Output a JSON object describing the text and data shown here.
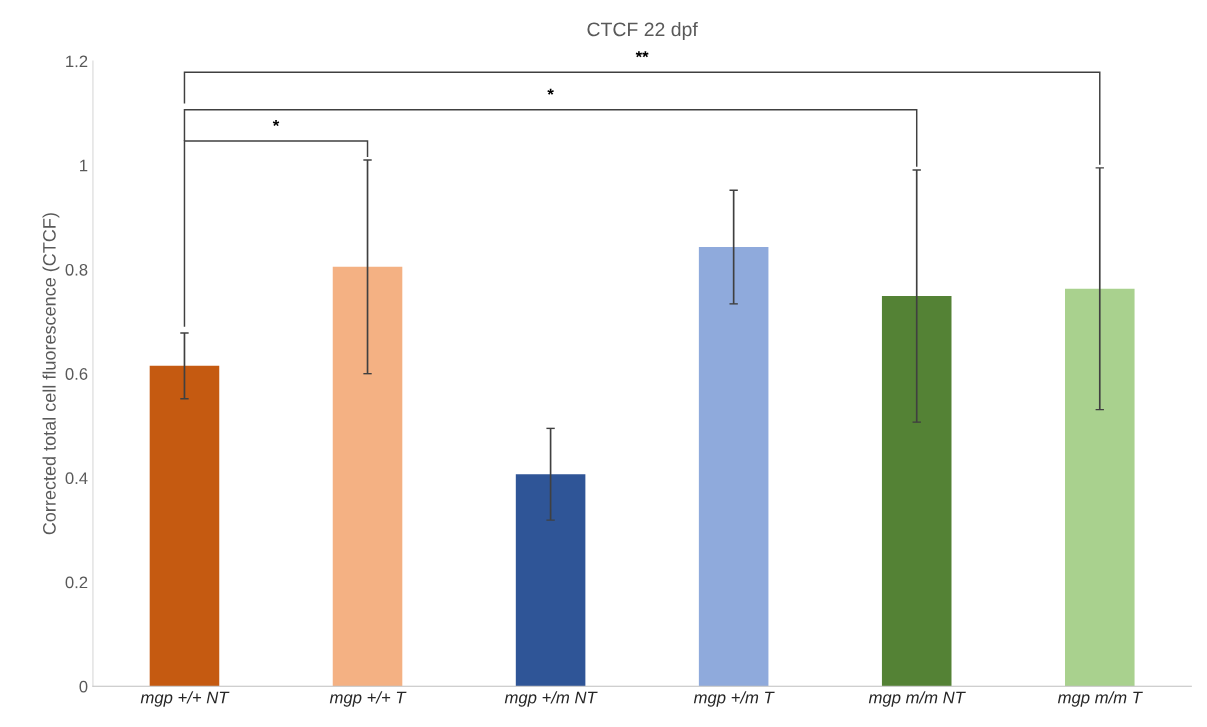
{
  "chart_data": {
    "type": "bar",
    "title": "CTCF 22 dpf",
    "ylabel": "Corrected total cell fluorescence (CTCF)",
    "categories": [
      "mgp +/+ NT",
      "mgp +/+ T",
      "mgp +/m NT",
      "mgp +/m T",
      "mgp m/m NT",
      "mgp m/m T"
    ],
    "values": [
      0.615,
      0.805,
      0.407,
      0.843,
      0.749,
      0.763
    ],
    "errors": [
      0.063,
      0.205,
      0.088,
      0.109,
      0.242,
      0.232
    ],
    "colors": [
      "#c55a11",
      "#f4b183",
      "#2f5597",
      "#8faadc",
      "#548235",
      "#a9d18e"
    ],
    "ylim": [
      0,
      1.2
    ],
    "yticks": [
      0,
      0.2,
      0.4,
      0.6,
      0.8,
      1,
      1.2
    ],
    "grid": false,
    "legend": false,
    "annotations": [
      "*",
      "*",
      "**"
    ]
  }
}
